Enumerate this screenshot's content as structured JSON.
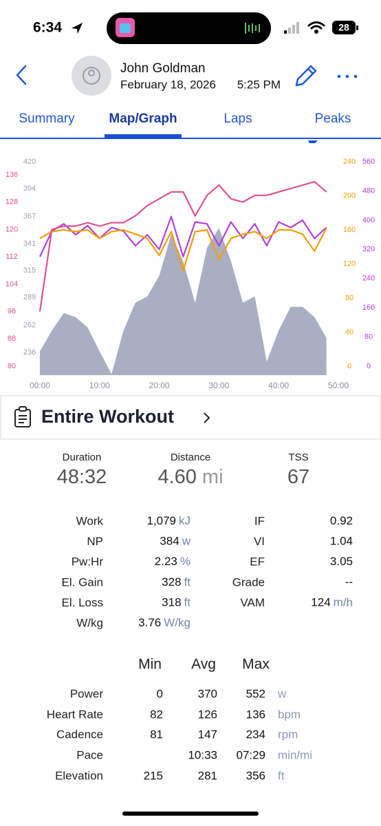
{
  "status_bar": {
    "time": "6:34",
    "battery": "28"
  },
  "header": {
    "name": "John Goldman",
    "date": "February 18, 2026",
    "time": "5:25 PM"
  },
  "tabs": {
    "items": [
      "Summary",
      "Map/Graph",
      "Laps",
      "Peaks"
    ],
    "active": 1
  },
  "chart_data": {
    "type": "line",
    "x": [
      0,
      2,
      4,
      6,
      8,
      10,
      12,
      14,
      16,
      18,
      20,
      22,
      24,
      26,
      28,
      30,
      32,
      34,
      36,
      38,
      40,
      42,
      44,
      46,
      48
    ],
    "xlim": [
      0,
      50
    ],
    "xticks": [
      {
        "value": 0,
        "label": "00:00"
      },
      {
        "value": 10,
        "label": "10:00"
      },
      {
        "value": 20,
        "label": "20:00"
      },
      {
        "value": 30,
        "label": "30:00"
      },
      {
        "value": 40,
        "label": "40:00"
      },
      {
        "value": 50,
        "label": "50:00"
      }
    ],
    "yaxes": [
      {
        "ylim": [
          214,
          420
        ],
        "yticks": [
          236,
          262,
          289,
          315,
          341,
          367,
          394,
          420
        ],
        "color": "#9aa0b6"
      },
      {
        "ylim": [
          80,
          136
        ],
        "yticks": [
          80,
          88,
          96,
          104,
          112,
          120,
          128,
          136
        ],
        "color": "#e0508f"
      },
      {
        "ylim": [
          0,
          240
        ],
        "yticks": [
          0,
          40,
          80,
          120,
          160,
          200,
          240
        ],
        "color": "#f0a000"
      },
      {
        "ylim": [
          0,
          560
        ],
        "yticks": [
          0,
          80,
          160,
          240,
          320,
          400,
          480,
          560
        ],
        "color": "#b53fe0"
      }
    ],
    "series": [
      {
        "axis": 0,
        "fill": true,
        "color": "#a9afc3",
        "values": [
          237,
          257,
          274,
          270,
          260,
          237,
          215,
          257,
          284,
          290,
          310,
          350,
          324,
          284,
          337,
          356,
          324,
          284,
          290,
          227,
          257,
          280,
          280,
          270,
          250
        ]
      },
      {
        "axis": 3,
        "fill": false,
        "color": "#b53fe0",
        "values": [
          300,
          370,
          390,
          360,
          385,
          350,
          380,
          370,
          330,
          360,
          320,
          410,
          300,
          395,
          390,
          330,
          395,
          350,
          390,
          330,
          395,
          380,
          400,
          350,
          380
        ]
      },
      {
        "axis": 2,
        "fill": false,
        "color": "#f0a000",
        "values": [
          150,
          158,
          160,
          158,
          160,
          150,
          158,
          160,
          155,
          150,
          130,
          158,
          112,
          158,
          160,
          125,
          150,
          155,
          158,
          150,
          160,
          160,
          155,
          135,
          162
        ]
      },
      {
        "axis": 1,
        "fill": false,
        "color": "#e0508f",
        "values": [
          96,
          120,
          121,
          121,
          122,
          121,
          122,
          122,
          124,
          127,
          129,
          131,
          131,
          124,
          130,
          133,
          129,
          128,
          130,
          130,
          131,
          132,
          133,
          134,
          131
        ]
      }
    ]
  },
  "section": {
    "title": "Entire Workout"
  },
  "summary": [
    {
      "label": "Duration",
      "value": "48:32"
    },
    {
      "label": "Distance",
      "value": "4.60",
      "unit": "mi"
    },
    {
      "label": "TSS",
      "value": "67"
    }
  ],
  "metrics_left": [
    {
      "label": "Work",
      "value": "1,079",
      "unit": "kJ"
    },
    {
      "label": "NP",
      "value": "384",
      "unit": "w"
    },
    {
      "label": "Pw:Hr",
      "value": "2.23",
      "unit": "%"
    },
    {
      "label": "El. Gain",
      "value": "328",
      "unit": "ft"
    },
    {
      "label": "El. Loss",
      "value": "318",
      "unit": "ft"
    },
    {
      "label": "W/kg",
      "value": "3.76",
      "unit": "W/kg"
    }
  ],
  "metrics_right": [
    {
      "label": "IF",
      "value": "0.92"
    },
    {
      "label": "VI",
      "value": "1.04"
    },
    {
      "label": "EF",
      "value": "3.05"
    },
    {
      "label": "Grade",
      "value": "--"
    },
    {
      "label": "VAM",
      "value": "124",
      "unit": "m/h"
    }
  ],
  "stats_table": {
    "columns": [
      "Min",
      "Avg",
      "Max"
    ],
    "rows": [
      {
        "label": "Power",
        "min": "0",
        "avg": "370",
        "max": "552",
        "unit": "w"
      },
      {
        "label": "Heart Rate",
        "min": "82",
        "avg": "126",
        "max": "136",
        "unit": "bpm"
      },
      {
        "label": "Cadence",
        "min": "81",
        "avg": "147",
        "max": "234",
        "unit": "rpm"
      },
      {
        "label": "Pace",
        "min": null,
        "avg": "10:33",
        "max": "07:29",
        "unit": "min/mi"
      },
      {
        "label": "Elevation",
        "min": "215",
        "avg": "281",
        "max": "356",
        "unit": "ft"
      }
    ]
  }
}
